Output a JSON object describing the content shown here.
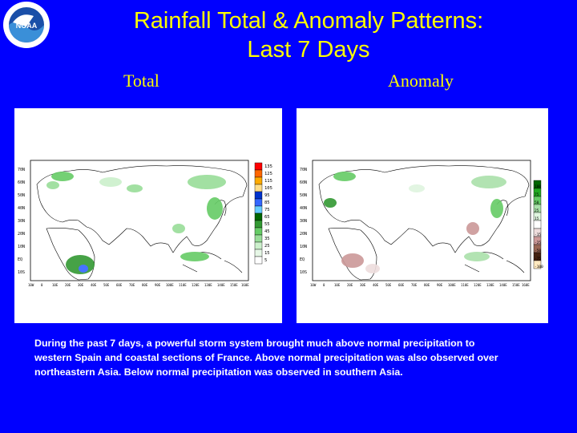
{
  "title": {
    "line1": "Rainfall Total & Anomaly Patterns:",
    "line2": "Last 7 Days"
  },
  "logo": {
    "text": "NOAA"
  },
  "labels": {
    "total": "Total",
    "anomaly": "Anomaly"
  },
  "total_map": {
    "lat_ticks": [
      "70N",
      "60N",
      "50N",
      "40N",
      "30N",
      "20N",
      "10N",
      "EQ",
      "10S"
    ],
    "lon_ticks": [
      "10W",
      "0",
      "10E",
      "20E",
      "30E",
      "40E",
      "50E",
      "60E",
      "70E",
      "80E",
      "90E",
      "100E",
      "110E",
      "120E",
      "130E",
      "140E",
      "150E",
      "160E"
    ],
    "legend_values": [
      "135",
      "125",
      "115",
      "105",
      "95",
      "85",
      "75",
      "65",
      "55",
      "45",
      "35",
      "25",
      "15",
      "5"
    ],
    "legend_colors": [
      "#ff0000",
      "#ff6600",
      "#ffaa00",
      "#ffdd88",
      "#0033cc",
      "#3366ff",
      "#66ccff",
      "#006600",
      "#339933",
      "#66cc66",
      "#99dd99",
      "#ccf0cc",
      "#e6f7e6",
      "#ffffff"
    ]
  },
  "anomaly_map": {
    "lat_ticks": [
      "70N",
      "60N",
      "50N",
      "40N",
      "30N",
      "20N",
      "10N",
      "EQ",
      "10S"
    ],
    "lon_ticks": [
      "10W",
      "0",
      "10E",
      "20E",
      "30E",
      "40E",
      "50E",
      "60E",
      "70E",
      "80E",
      "90E",
      "100E",
      "110E",
      "120E",
      "130E",
      "140E",
      "150E",
      "160E"
    ],
    "legend_values": [
      "100",
      "75",
      "50",
      "25",
      "15",
      "-15",
      "-25",
      "-50",
      "-75",
      "-100"
    ],
    "legend_colors": [
      "#006600",
      "#22aa22",
      "#66cc66",
      "#aae0aa",
      "#dff5df",
      "#ffffff",
      "#eedddd",
      "#cc9999",
      "#996655",
      "#442211",
      "#ffe9c0"
    ]
  },
  "caption": {
    "line1": "During the past 7 days, a powerful storm system brought much above normal precipitation to",
    "line2": "western Spain and coastal sections of France. Above normal precipitation was also observed over",
    "line3": "northeastern Asia. Below normal precipitation was observed in southern Asia."
  }
}
